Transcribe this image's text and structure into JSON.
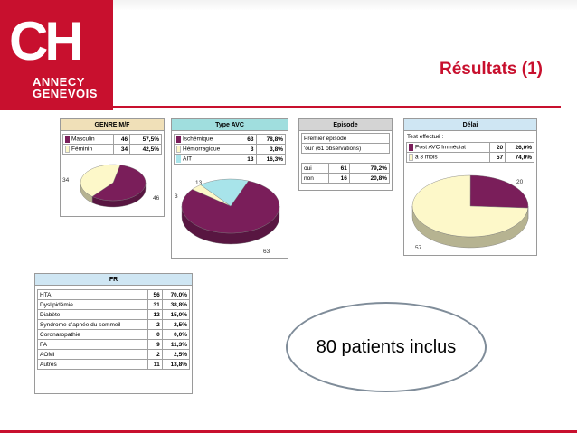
{
  "header": {
    "logo_letters": "CH",
    "logo_city_line1": "ANNECY",
    "logo_city_line2": "GENEVOIS",
    "title": "Résultats (1)",
    "brand_color": "#c8102e"
  },
  "callout": {
    "text": "80 patients inclus"
  },
  "chart_data": [
    {
      "type": "pie",
      "title": "GENRE M/F",
      "rows": [
        {
          "label": "Masculin",
          "count": "46",
          "pct": "57,5%",
          "color": "#7a1e5a"
        },
        {
          "label": "Féminin",
          "count": "34",
          "pct": "42,5%",
          "color": "#fdf8c9"
        }
      ],
      "values": [
        46,
        34
      ],
      "slice_labels": [
        "46",
        "34"
      ]
    },
    {
      "type": "pie",
      "title": "Type AVC",
      "rows": [
        {
          "label": "Ischémique",
          "count": "63",
          "pct": "78,8%",
          "color": "#7a1e5a"
        },
        {
          "label": "Hémorragique",
          "count": "3",
          "pct": "3,8%",
          "color": "#fdf8c9"
        },
        {
          "label": "AIT",
          "count": "13",
          "pct": "16,3%",
          "color": "#a8e4ea"
        }
      ],
      "values": [
        63,
        3,
        13
      ],
      "slice_labels": [
        "63",
        "3",
        "13"
      ]
    },
    {
      "type": "table",
      "title": "Episode",
      "heading": "Premier episode",
      "subheading": "'oui' (61 observations)",
      "rows": [
        {
          "label": "oui",
          "count": "61",
          "pct": "79,2%"
        },
        {
          "label": "non",
          "count": "16",
          "pct": "20,8%"
        }
      ]
    },
    {
      "type": "pie",
      "title": "Délai",
      "heading": "Test effectué :",
      "rows": [
        {
          "label": "Post AVC Immédiat",
          "count": "20",
          "pct": "26,0%",
          "color": "#7a1e5a"
        },
        {
          "label": "à 3 mois",
          "count": "57",
          "pct": "74,0%",
          "color": "#fdf8c9"
        }
      ],
      "values": [
        20,
        57
      ],
      "slice_labels": [
        "20",
        "57"
      ]
    },
    {
      "type": "table",
      "title": "FR",
      "rows": [
        {
          "label": "HTA",
          "count": "56",
          "pct": "70,0%"
        },
        {
          "label": "Dyslipidémie",
          "count": "31",
          "pct": "38,8%"
        },
        {
          "label": "Diabète",
          "count": "12",
          "pct": "15,0%"
        },
        {
          "label": "Syndrome d'apnée du sommeil",
          "count": "2",
          "pct": "2,5%"
        },
        {
          "label": "Coronaropathie",
          "count": "0",
          "pct": "0,0%"
        },
        {
          "label": "FA",
          "count": "9",
          "pct": "11,3%"
        },
        {
          "label": "AOMI",
          "count": "2",
          "pct": "2,5%"
        },
        {
          "label": "Autres",
          "count": "11",
          "pct": "13,8%"
        }
      ]
    }
  ]
}
